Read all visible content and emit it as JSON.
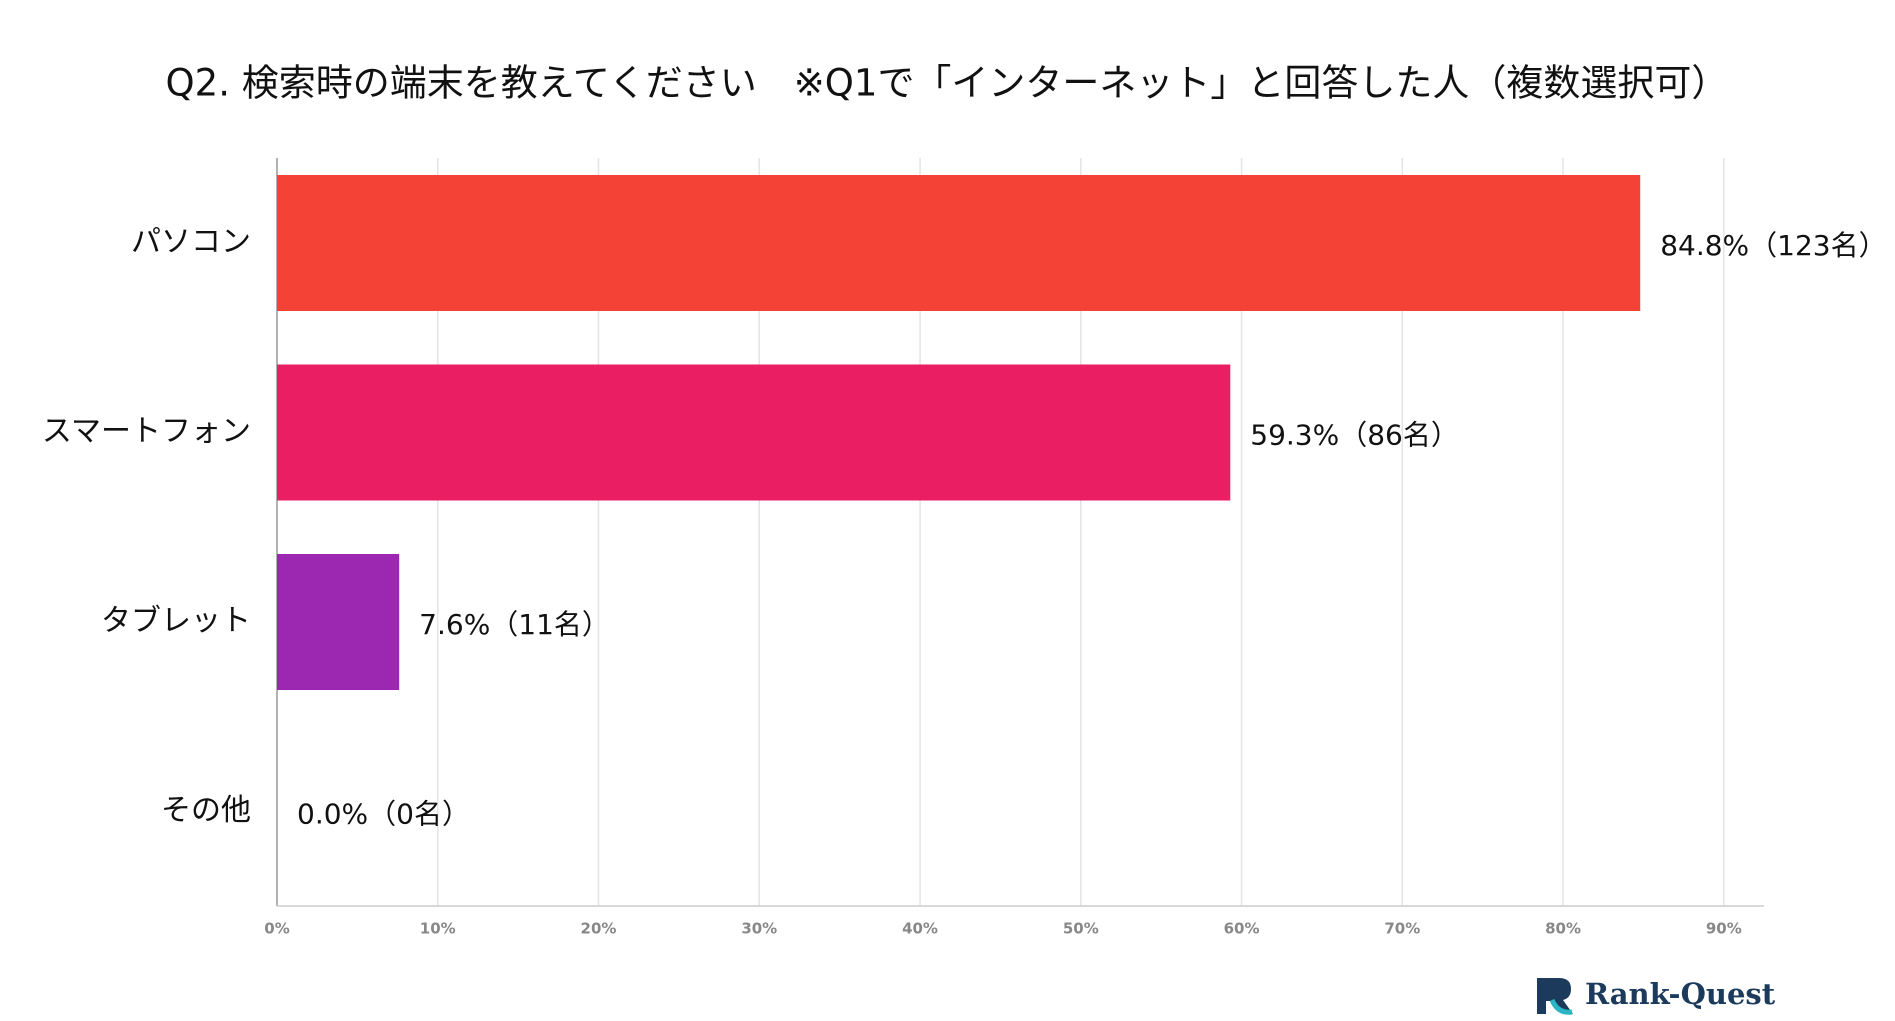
{
  "chart_data": {
    "type": "bar",
    "orientation": "horizontal",
    "title": "Q2. 検索時の端末を教えてください　※Q1で「インターネット」と回答した人（複数選択可）",
    "categories": [
      "パソコン",
      "スマートフォン",
      "タブレット",
      "その他"
    ],
    "values": [
      84.8,
      59.3,
      7.6,
      0.0
    ],
    "value_labels": [
      "84.8%（123名）",
      "59.3%（86名）",
      "7.6%（11名）",
      "0.0%（0名）"
    ],
    "colors": [
      "#f44336",
      "#e91e63",
      "#9c27b0",
      "#673ab7"
    ],
    "xlim": [
      0,
      92.5
    ],
    "xticks": [
      {
        "value": 0,
        "label": "0%"
      },
      {
        "value": 10,
        "label": "10%"
      },
      {
        "value": 20,
        "label": "20%"
      },
      {
        "value": 30,
        "label": "30%"
      },
      {
        "value": 40,
        "label": "40%"
      },
      {
        "value": 50,
        "label": "50%"
      },
      {
        "value": 60,
        "label": "60%"
      },
      {
        "value": 70,
        "label": "70%"
      },
      {
        "value": 80,
        "label": "80%"
      },
      {
        "value": 90,
        "label": "90%"
      }
    ],
    "grid": true
  },
  "brand": "Rank-Quest"
}
